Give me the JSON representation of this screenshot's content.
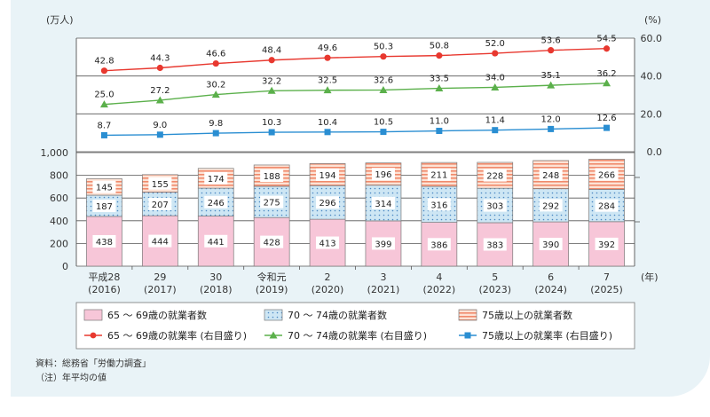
{
  "chart_data": {
    "type": "bar",
    "stacked": true,
    "categories": [
      {
        "era": "平成28",
        "year": "(2016)"
      },
      {
        "era": "29",
        "year": "(2017)"
      },
      {
        "era": "30",
        "year": "(2018)"
      },
      {
        "era": "令和元",
        "year": "(2019)"
      },
      {
        "era": "2",
        "year": "(2020)"
      },
      {
        "era": "3",
        "year": "(2021)"
      },
      {
        "era": "4",
        "year": "(2022)"
      },
      {
        "era": "5",
        "year": "(2023)"
      },
      {
        "era": "6",
        "year": "(2024)"
      },
      {
        "era": "7",
        "year": "(2025)"
      }
    ],
    "x_unit": "(年)",
    "left_unit": "(万人)",
    "right_unit": "(%)",
    "left_axis": {
      "range": [
        0,
        1000
      ],
      "ticks": [
        "0",
        "200",
        "400",
        "600",
        "800",
        "1,000"
      ]
    },
    "right_axis": {
      "range": [
        0,
        60
      ],
      "ticks": [
        "0.0",
        "20.0",
        "40.0",
        "60.0"
      ]
    },
    "bars": [
      {
        "name": "65 ～ 69歳の就業者数",
        "color": "#f7c6d8",
        "pattern": "solid",
        "values": [
          438,
          444,
          441,
          428,
          413,
          399,
          386,
          383,
          390,
          392
        ]
      },
      {
        "name": "70 ～ 74歳の就業者数",
        "color": "#cde6f4",
        "pattern": "dots",
        "dot_color": "#4a88c2",
        "values": [
          187,
          207,
          246,
          275,
          296,
          314,
          316,
          303,
          292,
          284
        ]
      },
      {
        "name": "75歳以上の就業者数",
        "color": "#fde3d6",
        "pattern": "stripes",
        "stripe_color": "#f08a6c",
        "values": [
          145,
          155,
          174,
          188,
          194,
          196,
          211,
          228,
          248,
          266
        ]
      }
    ],
    "lines": [
      {
        "name": "65 ～ 69歳の就業率 (右目盛り)",
        "color": "#e8382f",
        "marker": "circle",
        "values": [
          42.8,
          44.3,
          46.6,
          48.4,
          49.6,
          50.3,
          50.8,
          52.0,
          53.6,
          54.5
        ],
        "labels": [
          "42.8",
          "44.3",
          "46.6",
          "48.4",
          "49.6",
          "50.3",
          "50.8",
          "52.0",
          "53.6",
          "54.5"
        ]
      },
      {
        "name": "70 ～ 74歳の就業率 (右目盛り)",
        "color": "#5bb04b",
        "marker": "triangle",
        "values": [
          25.0,
          27.2,
          30.2,
          32.2,
          32.5,
          32.6,
          33.5,
          34.0,
          35.1,
          36.2
        ],
        "labels": [
          "25.0",
          "27.2",
          "30.2",
          "32.2",
          "32.5",
          "32.6",
          "33.5",
          "34.0",
          "35.1",
          "36.2"
        ]
      },
      {
        "name": "75歳以上の就業率 (右目盛り)",
        "color": "#2a8ed2",
        "marker": "square",
        "values": [
          8.7,
          9.0,
          9.8,
          10.3,
          10.4,
          10.5,
          11.0,
          11.4,
          12.0,
          12.6
        ],
        "labels": [
          "8.7",
          "9.0",
          "9.8",
          "10.3",
          "10.4",
          "10.5",
          "11.0",
          "11.4",
          "12.0",
          "12.6"
        ]
      }
    ],
    "legend_placement": "bottom",
    "source_note": "資料：総務省「労働力調査」",
    "note": "（注）年平均の値"
  }
}
